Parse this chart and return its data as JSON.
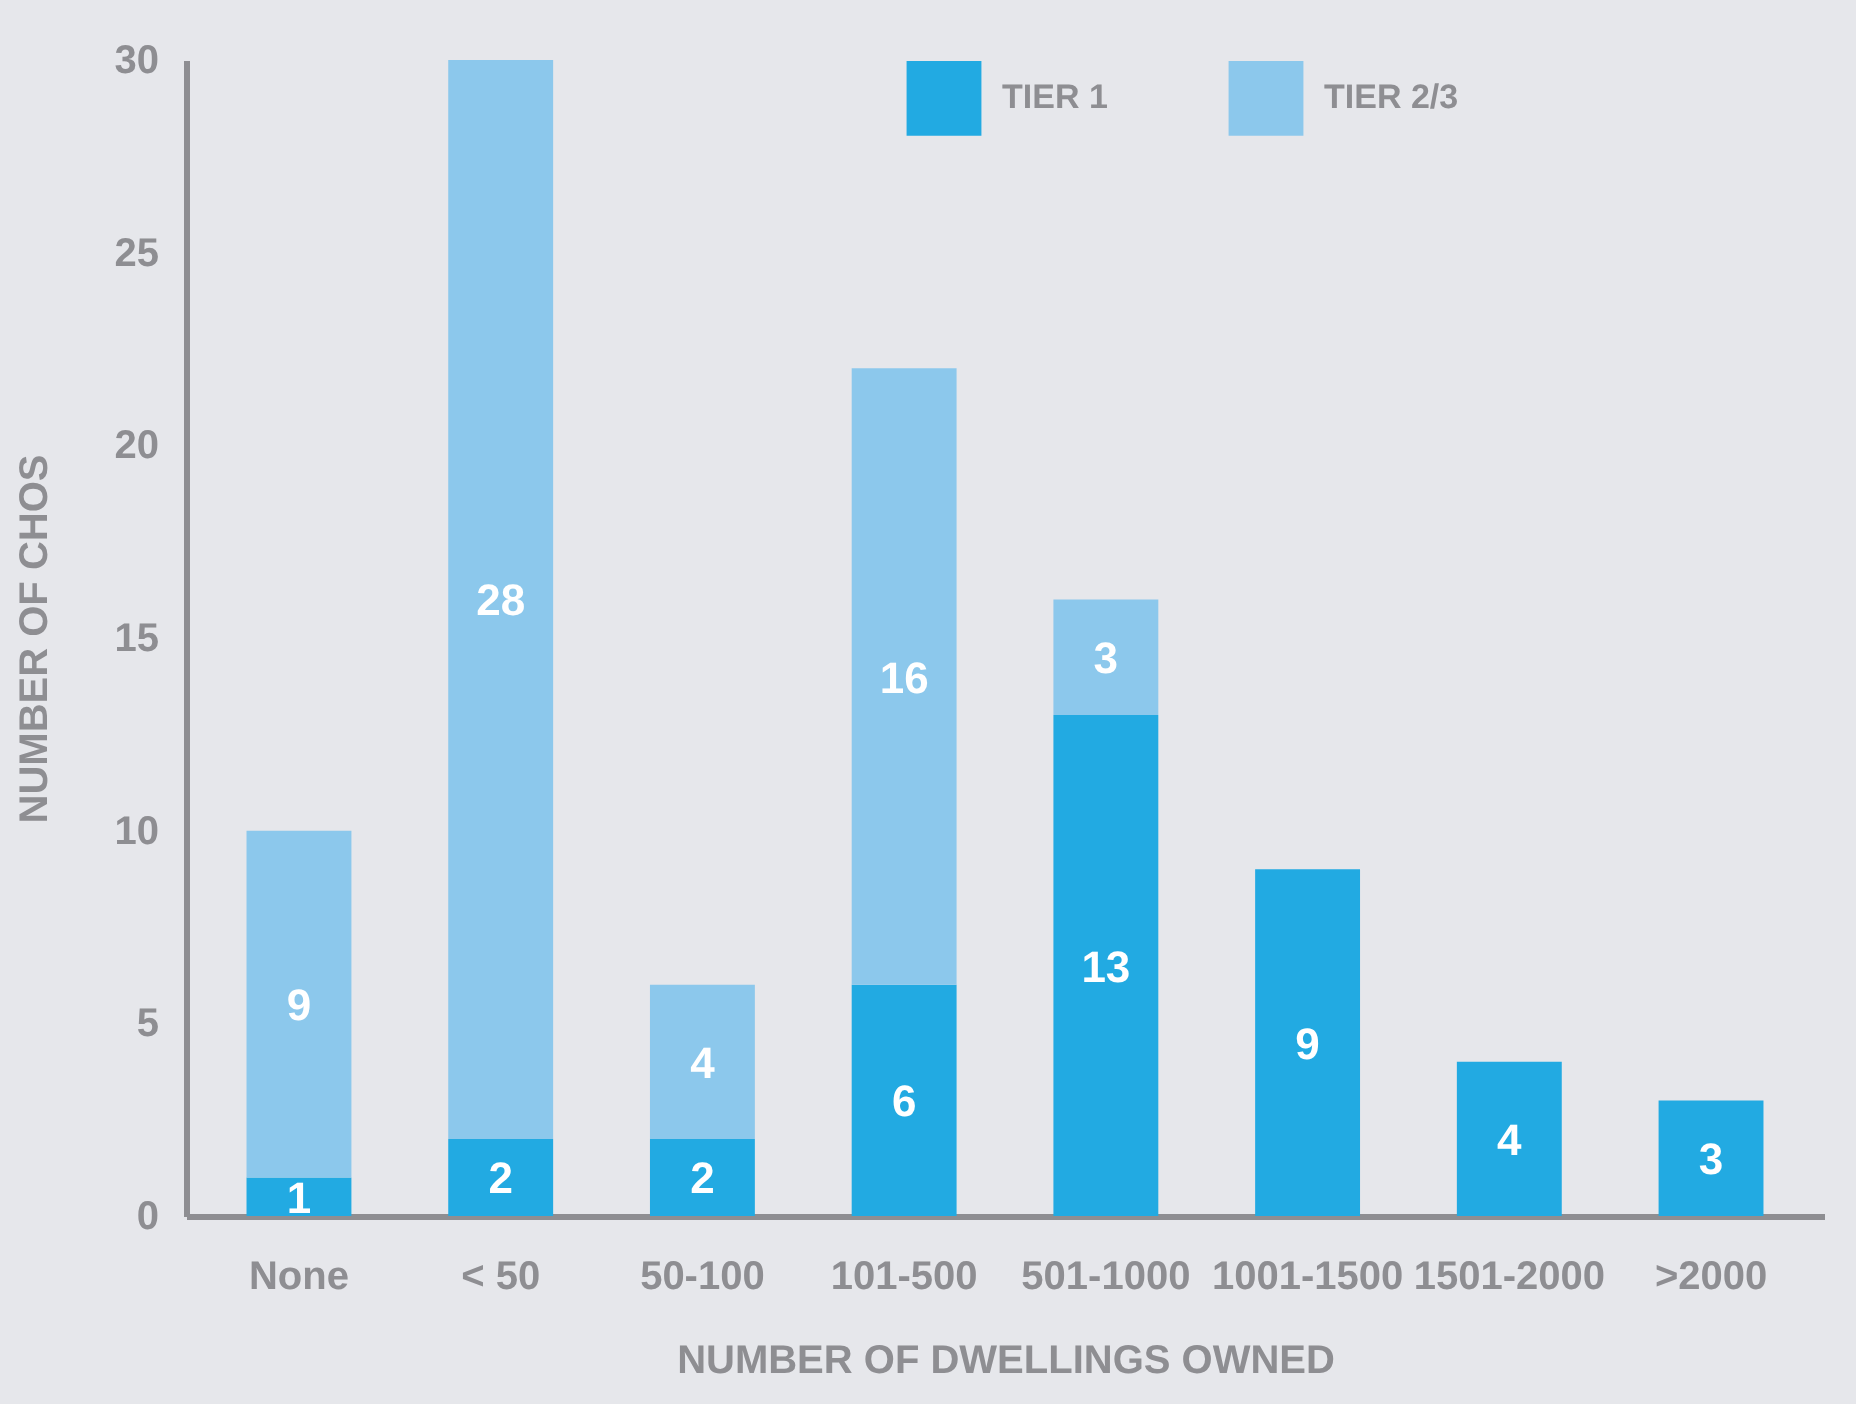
{
  "chart_data": {
    "type": "bar",
    "stacked": true,
    "xlabel": "NUMBER OF DWELLINGS OWNED",
    "ylabel": "NUMBER OF CHOS",
    "categories": [
      "None",
      "< 50",
      "50-100",
      "101-500",
      "501-1000",
      "1001-1500",
      "1501-2000",
      ">2000"
    ],
    "series": [
      {
        "name": "TIER 1",
        "color": "#22aae2",
        "values": [
          1,
          2,
          2,
          6,
          13,
          9,
          4,
          3
        ]
      },
      {
        "name": "TIER 2/3",
        "color": "#8cc8ec",
        "values": [
          9,
          28,
          4,
          16,
          3,
          null,
          null,
          null
        ]
      }
    ],
    "ylim": [
      0,
      30
    ],
    "yticks": [
      0,
      5,
      10,
      15,
      20,
      25,
      30
    ],
    "grid": false,
    "legend": "top right",
    "data_labels": true
  }
}
